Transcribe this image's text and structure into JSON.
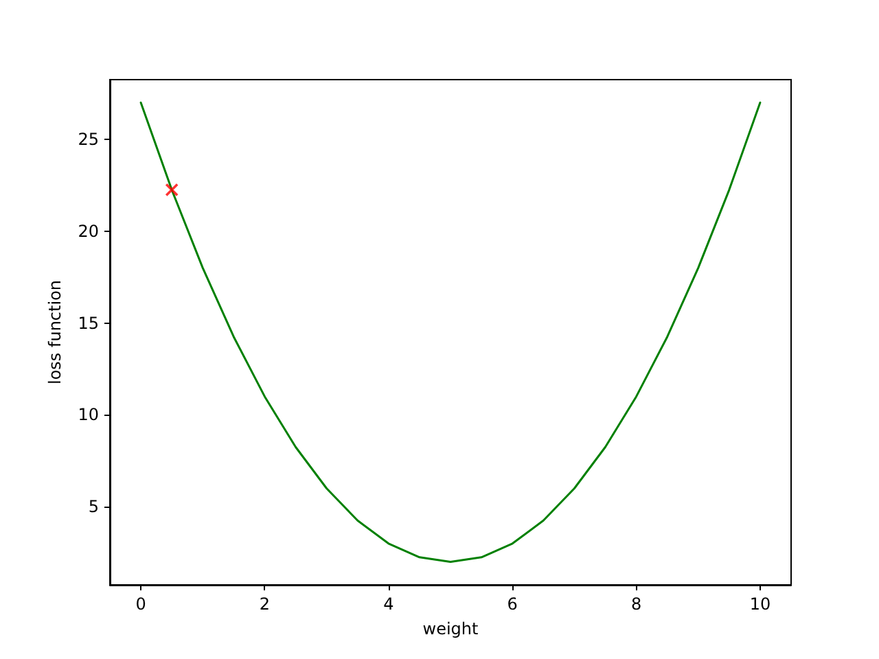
{
  "chart_data": {
    "type": "line",
    "xlabel": "weight",
    "ylabel": "loss function",
    "xlim": [
      -0.5,
      10.5
    ],
    "xticks": [
      0,
      2,
      4,
      6,
      8,
      10
    ],
    "ylim": [
      0.75,
      28.25
    ],
    "yticks": [
      5,
      10,
      15,
      20,
      25
    ],
    "series": [
      {
        "color": "#008000",
        "marker": "none",
        "line_style": "solid",
        "x": [
          0,
          0.5,
          1,
          1.5,
          2,
          2.5,
          3,
          3.5,
          4,
          4.5,
          5,
          5.5,
          6,
          6.5,
          7,
          7.5,
          8,
          8.5,
          9,
          9.5,
          10
        ],
        "values": [
          27,
          22.25,
          18,
          14.25,
          11,
          8.25,
          6,
          4.25,
          3,
          2.25,
          2,
          2.25,
          3,
          4.25,
          6,
          8.25,
          11,
          14.25,
          18,
          22.25,
          27
        ]
      },
      {
        "type": "scatter",
        "color": "#ff0000",
        "marker": "cross",
        "x": [
          0.5
        ],
        "values": [
          22.25
        ]
      }
    ]
  }
}
